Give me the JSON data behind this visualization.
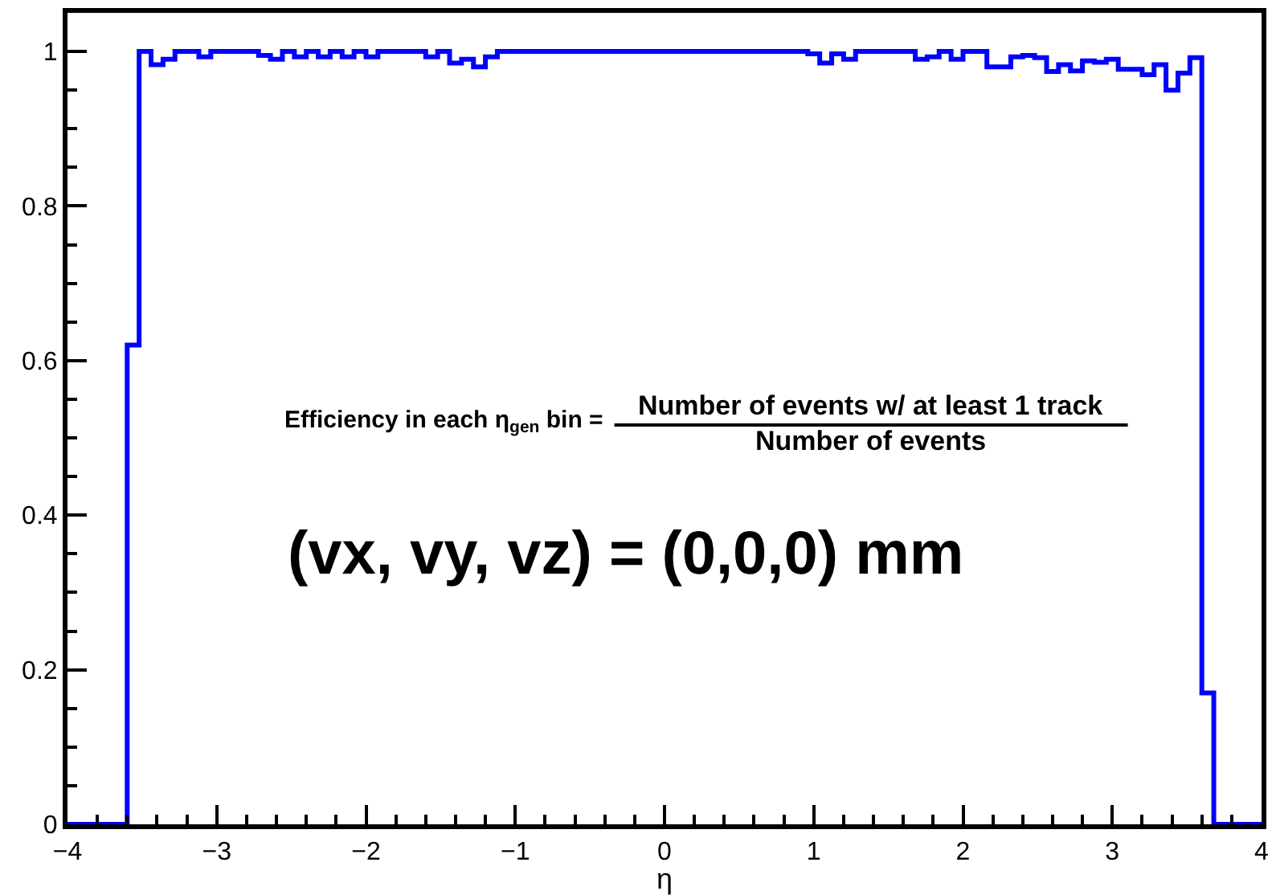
{
  "chart_data": {
    "type": "histogram",
    "xlabel": "η",
    "bins": [
      -4,
      -3.92,
      -3.84,
      -3.76,
      -3.68,
      -3.6,
      -3.52,
      -3.44,
      -3.36,
      -3.28,
      -3.2,
      -3.12,
      -3.04,
      -2.96,
      -2.88,
      -2.8,
      -2.72,
      -2.64,
      -2.56,
      -2.48,
      -2.4,
      -2.32,
      -2.24,
      -2.16,
      -2.08,
      -2,
      -1.92,
      -1.84,
      -1.76,
      -1.68,
      -1.6,
      -1.52,
      -1.44,
      -1.36,
      -1.28,
      -1.2,
      -1.12,
      -1.04,
      -0.96,
      -0.88,
      -0.8,
      -0.72,
      -0.64,
      -0.56,
      -0.48,
      -0.4,
      -0.32,
      -0.24,
      -0.16,
      -0.08,
      0,
      0.08,
      0.16,
      0.24,
      0.32,
      0.4,
      0.48,
      0.56,
      0.64,
      0.72,
      0.8,
      0.88,
      0.96,
      1.04,
      1.12,
      1.2,
      1.28,
      1.36,
      1.44,
      1.52,
      1.6,
      1.68,
      1.76,
      1.84,
      1.92,
      2,
      2.08,
      2.16,
      2.24,
      2.32,
      2.4,
      2.48,
      2.56,
      2.64,
      2.72,
      2.8,
      2.88,
      2.96,
      3.04,
      3.12,
      3.2,
      3.28,
      3.36,
      3.44,
      3.52,
      3.6,
      3.68,
      3.76,
      3.84,
      3.92,
      4
    ],
    "values": [
      0,
      0,
      0,
      0,
      0,
      0.62,
      1,
      0.983,
      0.99,
      1,
      1,
      0.993,
      1,
      1,
      1,
      1,
      0.995,
      0.99,
      1,
      0.993,
      1,
      0.993,
      1,
      0.993,
      1,
      0.993,
      1,
      1,
      1,
      1,
      0.993,
      1,
      0.985,
      0.99,
      0.98,
      0.993,
      1,
      1,
      1,
      1,
      1,
      1,
      1,
      1,
      1,
      1,
      1,
      1,
      1,
      1,
      1,
      1,
      1,
      1,
      1,
      1,
      1,
      1,
      1,
      1,
      1,
      1,
      0.997,
      0.985,
      0.997,
      0.99,
      1,
      1,
      1,
      1,
      1,
      0.99,
      0.993,
      1,
      0.99,
      1,
      1,
      0.98,
      0.98,
      0.993,
      0.995,
      0.992,
      0.974,
      0.983,
      0.975,
      0.988,
      0.986,
      0.99,
      0.977,
      0.977,
      0.97,
      0.983,
      0.95,
      0.972,
      0.992,
      0.17,
      0,
      0,
      0,
      0
    ],
    "color": "#0000ff",
    "xlim": [
      -4,
      4
    ],
    "xticks": [
      -4,
      -3,
      -2,
      -1,
      0,
      1,
      2,
      3,
      4
    ],
    "ylim": [
      0,
      1.05
    ],
    "yticks": [
      0,
      0.2,
      0.4,
      0.6,
      0.8,
      1
    ],
    "annotations": [
      "Efficiency in each η$_{gen}$ bin =",
      "Number of events w/ at least 1 track",
      "Number of events",
      "(vx, vy, vz) = (0,0,0) mm"
    ]
  }
}
